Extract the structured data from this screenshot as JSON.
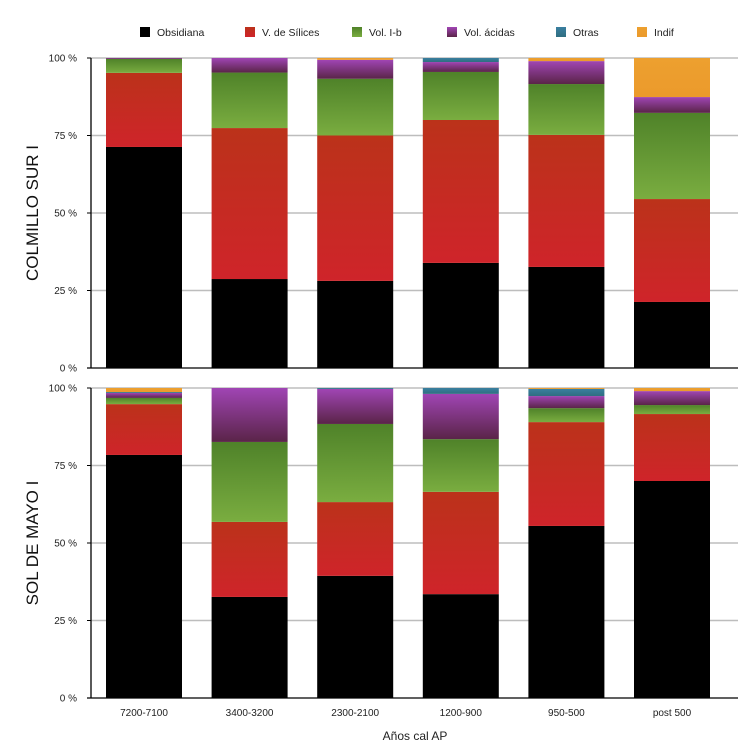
{
  "chart_data": {
    "type": "bar",
    "stacked": true,
    "normalized": true,
    "xlabel": "Años cal AP",
    "categories": [
      "7200-7100",
      "3400-3200",
      "2300-2100",
      "1200-900",
      "950-500",
      "post 500"
    ],
    "legend": {
      "placement": "top",
      "entries": [
        {
          "name": "Obsidiana",
          "color": "#000000"
        },
        {
          "name": "V. de Sílices",
          "color": "#c62828"
        },
        {
          "name": "Vol. I-b",
          "color": "#5f9434"
        },
        {
          "name": "Vol. ácidas",
          "color": "#7b3a7c"
        },
        {
          "name": "Otras",
          "color": "#35788f"
        },
        {
          "name": "Indif",
          "color": "#eb9e2e"
        }
      ]
    },
    "yticks": [
      "0 %",
      "25 %",
      "50 %",
      "75 %",
      "100 %"
    ],
    "ylim": [
      0,
      100
    ],
    "grid": true,
    "panels": [
      {
        "title": "COLMILLO SUR I",
        "series": [
          {
            "name": "Obsidiana",
            "values": [
              71.3,
              28.7,
              28.1,
              33.9,
              32.6,
              21.3
            ]
          },
          {
            "name": "V. de Sílices",
            "values": [
              23.9,
              48.7,
              46.9,
              46.1,
              42.6,
              33.2
            ]
          },
          {
            "name": "Vol. I-b",
            "values": [
              4.5,
              17.9,
              18.3,
              15.5,
              16.4,
              27.8
            ]
          },
          {
            "name": "Vol. ácidas",
            "values": [
              0.3,
              4.7,
              6.1,
              3.2,
              7.4,
              5.1
            ]
          },
          {
            "name": "Otras",
            "values": [
              0,
              0,
              0,
              1.3,
              0,
              0
            ]
          },
          {
            "name": "Indif",
            "values": [
              0,
              0,
              0.6,
              0,
              1.0,
              12.6
            ]
          }
        ]
      },
      {
        "title": "SOL DE MAYO I",
        "series": [
          {
            "name": "Obsidiana",
            "values": [
              78.4,
              32.6,
              39.4,
              33.5,
              55.5,
              70.0
            ]
          },
          {
            "name": "V. de Sílices",
            "values": [
              16.4,
              24.2,
              23.8,
              33.0,
              33.5,
              21.6
            ]
          },
          {
            "name": "Vol. I-b",
            "values": [
              2.0,
              25.8,
              25.2,
              17.0,
              4.5,
              2.9
            ]
          },
          {
            "name": "Vol. ácidas",
            "values": [
              1.6,
              17.4,
              11.3,
              14.6,
              3.9,
              4.5
            ]
          },
          {
            "name": "Otras",
            "values": [
              0.3,
              0,
              0.3,
              1.9,
              2.3,
              0
            ]
          },
          {
            "name": "Indif",
            "values": [
              1.3,
              0,
              0,
              0,
              0.3,
              1.0
            ]
          }
        ]
      }
    ]
  }
}
